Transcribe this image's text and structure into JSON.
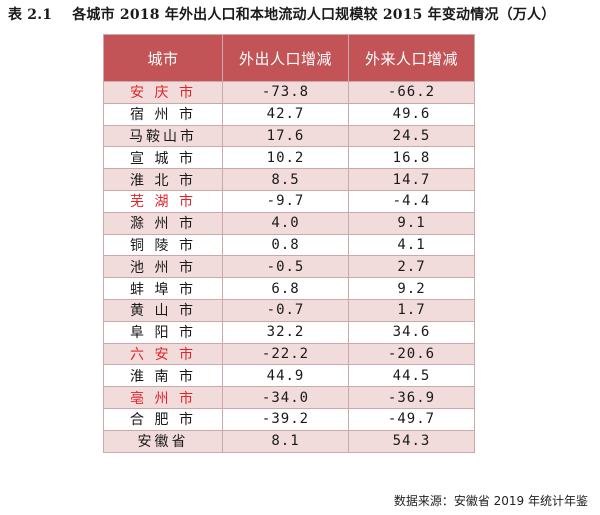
{
  "caption": {
    "number": "表 2.1",
    "text": "各城市 2018 年外出人口和本地流动人口规模较 2015 年变动情况（万人）"
  },
  "table": {
    "headers": [
      "城市",
      "外出人口增减",
      "外来人口增减"
    ],
    "rows": [
      {
        "city": "安 庆 市",
        "out": "-73.8",
        "in": "-66.2",
        "highlight": true
      },
      {
        "city": "宿 州 市",
        "out": "42.7",
        "in": "49.6",
        "highlight": false
      },
      {
        "city": "马鞍山市",
        "out": "17.6",
        "in": "24.5",
        "highlight": false
      },
      {
        "city": "宣 城 市",
        "out": "10.2",
        "in": "16.8",
        "highlight": false
      },
      {
        "city": "淮 北 市",
        "out": "8.5",
        "in": "14.7",
        "highlight": false
      },
      {
        "city": "芜 湖 市",
        "out": "-9.7",
        "in": "-4.4",
        "highlight": true
      },
      {
        "city": "滁 州 市",
        "out": "4.0",
        "in": "9.1",
        "highlight": false
      },
      {
        "city": "铜 陵 市",
        "out": "0.8",
        "in": "4.1",
        "highlight": false
      },
      {
        "city": "池 州 市",
        "out": "-0.5",
        "in": "2.7",
        "highlight": false
      },
      {
        "city": "蚌 埠 市",
        "out": "6.8",
        "in": "9.2",
        "highlight": false
      },
      {
        "city": "黄 山 市",
        "out": "-0.7",
        "in": "1.7",
        "highlight": false
      },
      {
        "city": "阜 阳 市",
        "out": "32.2",
        "in": "34.6",
        "highlight": false
      },
      {
        "city": "六 安 市",
        "out": "-22.2",
        "in": "-20.6",
        "highlight": true
      },
      {
        "city": "淮 南 市",
        "out": "44.9",
        "in": "44.5",
        "highlight": false
      },
      {
        "city": "亳 州 市",
        "out": "-34.0",
        "in": "-36.9",
        "highlight": true
      },
      {
        "city": "合 肥 市",
        "out": "-39.2",
        "in": "-49.7",
        "highlight": false
      },
      {
        "city": "安徽省",
        "out": "8.1",
        "in": "54.3",
        "highlight": false
      }
    ]
  },
  "source": "数据来源：安徽省 2019 年统计年鉴",
  "colors": {
    "header_bg": "#c25457",
    "stripe": "#f2dcdb",
    "highlight_text": "#e0242a"
  }
}
